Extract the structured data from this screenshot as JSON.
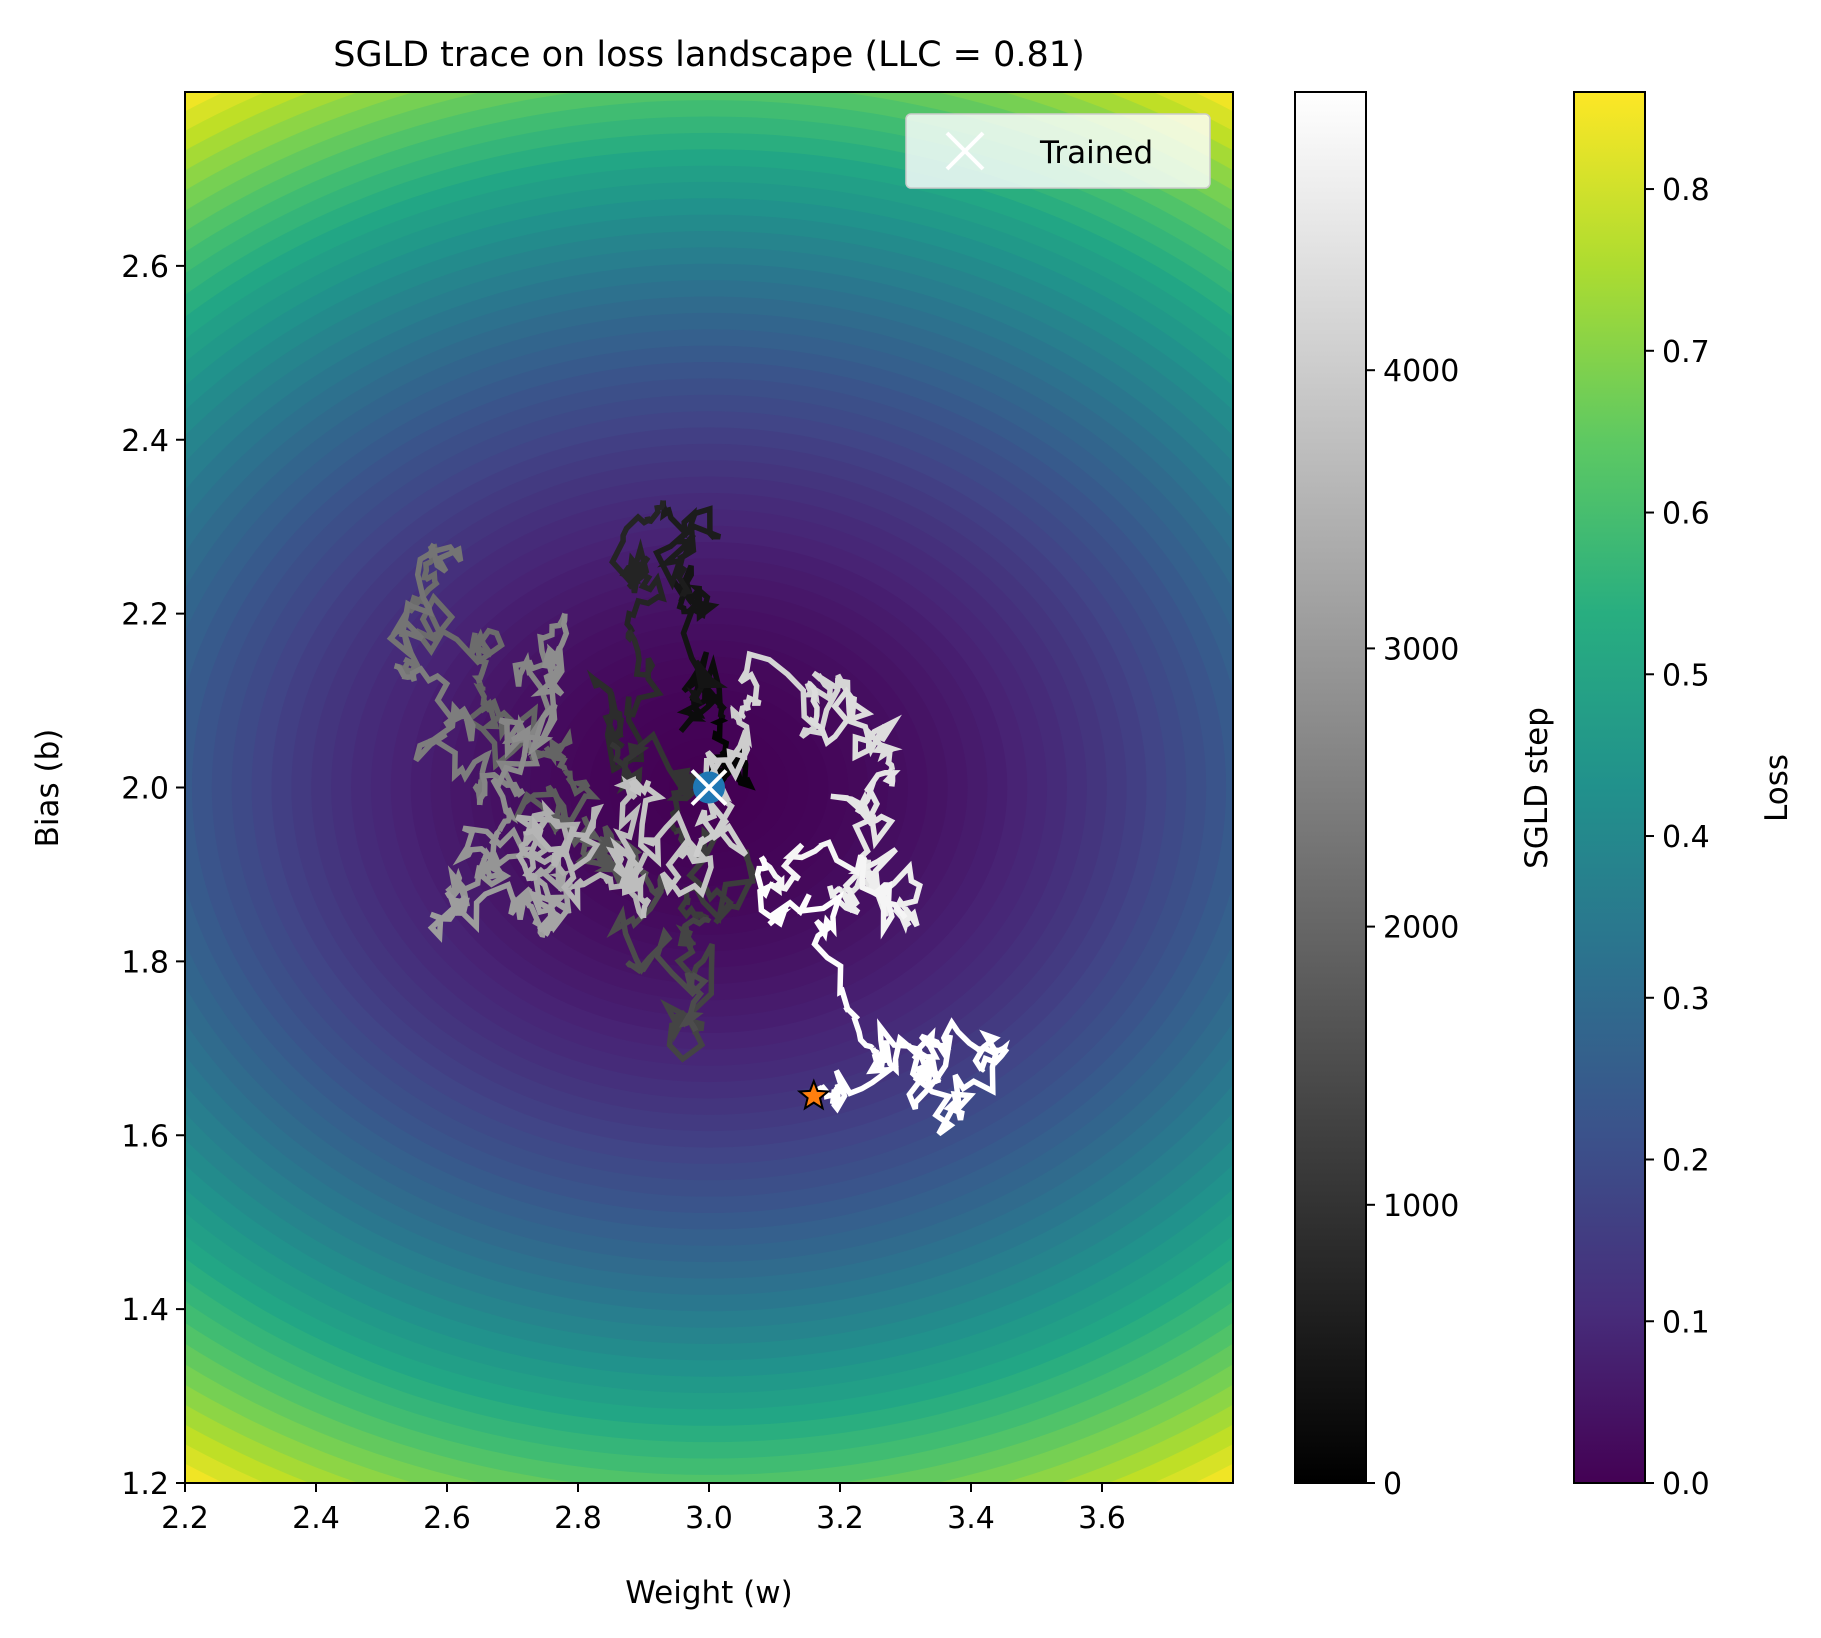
{
  "chart_data": {
    "type": "contour",
    "title": "SGLD trace on loss landscape (LLC = 0.81)",
    "xlabel": "Weight (w)",
    "ylabel": "Bias (b)",
    "xlim": [
      2.2,
      3.8
    ],
    "ylim": [
      1.2,
      2.8
    ],
    "xticks": [
      "2.2",
      "2.4",
      "2.6",
      "2.8",
      "3.0",
      "3.2",
      "3.4",
      "3.6"
    ],
    "yticks": [
      "1.2",
      "1.4",
      "1.6",
      "1.8",
      "2.0",
      "2.2",
      "2.4",
      "2.6"
    ],
    "loss_surface": {
      "center": {
        "w": 3.0,
        "b": 2.0
      },
      "colormap": "viridis",
      "levels": 50,
      "corner_value": 0.86
    },
    "trained_point": {
      "w": 3.0,
      "b": 2.0,
      "label": "Trained",
      "marker": "x",
      "color": "#ffffff"
    },
    "init_marker": {
      "w": 3.0,
      "b": 2.0,
      "color": "#1f77b4"
    },
    "final_point": {
      "w": 3.16,
      "b": 1.645,
      "marker": "star",
      "color": "#ff7f0e"
    },
    "sgld_trace_waypoints": [
      {
        "step": 0,
        "w": 3.0,
        "b": 2.0
      },
      {
        "step": 150,
        "w": 3.02,
        "b": 2.08
      },
      {
        "step": 300,
        "w": 2.98,
        "b": 2.1
      },
      {
        "step": 450,
        "w": 2.96,
        "b": 2.22
      },
      {
        "step": 600,
        "w": 2.93,
        "b": 2.33
      },
      {
        "step": 750,
        "w": 2.88,
        "b": 2.18
      },
      {
        "step": 900,
        "w": 2.85,
        "b": 2.05
      },
      {
        "step": 1050,
        "w": 2.95,
        "b": 1.95
      },
      {
        "step": 1200,
        "w": 3.0,
        "b": 1.85
      },
      {
        "step": 1350,
        "w": 2.98,
        "b": 1.72
      },
      {
        "step": 1500,
        "w": 2.9,
        "b": 1.9
      },
      {
        "step": 1650,
        "w": 2.82,
        "b": 1.92
      },
      {
        "step": 1800,
        "w": 2.78,
        "b": 2.02
      },
      {
        "step": 1950,
        "w": 2.65,
        "b": 2.12
      },
      {
        "step": 2100,
        "w": 2.58,
        "b": 2.28
      },
      {
        "step": 2250,
        "w": 2.52,
        "b": 2.14
      },
      {
        "step": 2400,
        "w": 2.65,
        "b": 1.98
      },
      {
        "step": 2550,
        "w": 2.78,
        "b": 2.2
      },
      {
        "step": 2700,
        "w": 2.68,
        "b": 1.95
      },
      {
        "step": 2850,
        "w": 2.6,
        "b": 1.88
      },
      {
        "step": 3000,
        "w": 2.75,
        "b": 1.83
      },
      {
        "step": 3150,
        "w": 2.78,
        "b": 1.9
      },
      {
        "step": 3300,
        "w": 2.72,
        "b": 1.95
      },
      {
        "step": 3450,
        "w": 2.9,
        "b": 1.85
      },
      {
        "step": 3600,
        "w": 2.88,
        "b": 2.0
      },
      {
        "step": 3750,
        "w": 2.98,
        "b": 1.92
      },
      {
        "step": 3900,
        "w": 3.05,
        "b": 2.08
      },
      {
        "step": 4050,
        "w": 3.15,
        "b": 2.12
      },
      {
        "step": 4200,
        "w": 3.28,
        "b": 2.02
      },
      {
        "step": 4350,
        "w": 3.2,
        "b": 1.88
      },
      {
        "step": 4500,
        "w": 3.3,
        "b": 1.85
      },
      {
        "step": 4650,
        "w": 3.08,
        "b": 1.92
      },
      {
        "step": 4800,
        "w": 3.25,
        "b": 1.7
      },
      {
        "step": 4900,
        "w": 3.35,
        "b": 1.66
      },
      {
        "step": 4950,
        "w": 3.45,
        "b": 1.7
      },
      {
        "step": 5000,
        "w": 3.16,
        "b": 1.645
      }
    ],
    "colorbars": [
      {
        "label": "SGLD step",
        "colormap": "gray",
        "range": [
          0,
          5000
        ],
        "ticks": [
          0,
          1000,
          2000,
          3000,
          4000
        ],
        "tick_labels": [
          "0",
          "1000",
          "2000",
          "3000",
          "4000"
        ]
      },
      {
        "label": "Loss",
        "colormap": "viridis",
        "range": [
          0,
          0.86
        ],
        "ticks": [
          0,
          0.1,
          0.2,
          0.3,
          0.4,
          0.5,
          0.6,
          0.7,
          0.8
        ],
        "tick_labels": [
          "0.0",
          "0.1",
          "0.2",
          "0.3",
          "0.4",
          "0.5",
          "0.6",
          "0.7",
          "0.8"
        ]
      }
    ],
    "legend": {
      "placement": "top-right",
      "entries": [
        {
          "label": "Trained",
          "marker": "x",
          "color": "#ffffff"
        }
      ]
    }
  }
}
